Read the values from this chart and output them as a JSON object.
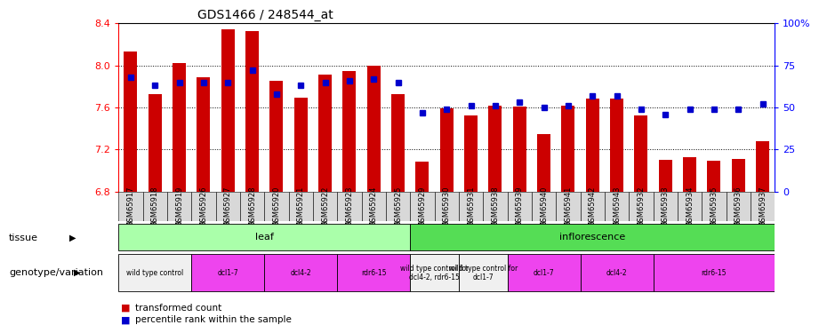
{
  "title": "GDS1466 / 248544_at",
  "samples": [
    "GSM65917",
    "GSM65918",
    "GSM65919",
    "GSM65926",
    "GSM65927",
    "GSM65928",
    "GSM65920",
    "GSM65921",
    "GSM65922",
    "GSM65923",
    "GSM65924",
    "GSM65925",
    "GSM65929",
    "GSM65930",
    "GSM65931",
    "GSM65938",
    "GSM65939",
    "GSM65940",
    "GSM65941",
    "GSM65942",
    "GSM65943",
    "GSM65932",
    "GSM65933",
    "GSM65934",
    "GSM65935",
    "GSM65936",
    "GSM65937"
  ],
  "bar_values": [
    8.13,
    7.73,
    8.02,
    7.89,
    8.34,
    8.33,
    7.85,
    7.69,
    7.91,
    7.95,
    8.0,
    7.73,
    7.08,
    7.59,
    7.52,
    7.62,
    7.61,
    7.35,
    7.62,
    7.68,
    7.68,
    7.52,
    7.1,
    7.13,
    7.09,
    7.11,
    7.28
  ],
  "percentile_values": [
    68,
    63,
    65,
    65,
    65,
    72,
    58,
    63,
    65,
    66,
    67,
    65,
    47,
    49,
    51,
    51,
    53,
    50,
    51,
    57,
    57,
    49,
    46,
    49,
    49,
    49,
    52
  ],
  "ylim_left": [
    6.8,
    8.4
  ],
  "ylim_right": [
    0,
    100
  ],
  "yticks_left": [
    6.8,
    7.2,
    7.6,
    8.0,
    8.4
  ],
  "yticks_right": [
    0,
    25,
    50,
    75,
    100
  ],
  "ytick_labels_right": [
    "0",
    "25",
    "50",
    "75",
    "100%"
  ],
  "grid_values": [
    7.2,
    7.6,
    8.0
  ],
  "bar_color": "#cc0000",
  "dot_color": "#0000cc",
  "bar_bottom": 6.8,
  "tissue_groups": [
    {
      "label": "leaf",
      "start": 0,
      "end": 12,
      "color": "#aaffaa"
    },
    {
      "label": "inflorescence",
      "start": 12,
      "end": 27,
      "color": "#55dd55"
    }
  ],
  "genotype_groups": [
    {
      "label": "wild type control",
      "start": 0,
      "end": 3,
      "color": "#f0f0f0"
    },
    {
      "label": "dcl1-7",
      "start": 3,
      "end": 6,
      "color": "#ee44ee"
    },
    {
      "label": "dcl4-2",
      "start": 6,
      "end": 9,
      "color": "#ee44ee"
    },
    {
      "label": "rdr6-15",
      "start": 9,
      "end": 12,
      "color": "#ee44ee"
    },
    {
      "label": "wild type control for\ndcl4-2, rdr6-15",
      "start": 12,
      "end": 14,
      "color": "#f0f0f0"
    },
    {
      "label": "wild type control for\ndcl1-7",
      "start": 14,
      "end": 16,
      "color": "#f0f0f0"
    },
    {
      "label": "dcl1-7",
      "start": 16,
      "end": 19,
      "color": "#ee44ee"
    },
    {
      "label": "dcl4-2",
      "start": 19,
      "end": 22,
      "color": "#ee44ee"
    },
    {
      "label": "rdr6-15",
      "start": 22,
      "end": 27,
      "color": "#ee44ee"
    }
  ],
  "tissue_label": "tissue",
  "genotype_label": "genotype/variation",
  "legend_bar": "transformed count",
  "legend_dot": "percentile rank within the sample",
  "background_color": "#ffffff",
  "axis_bg_color": "#ffffff",
  "xticklabel_bg": "#d8d8d8"
}
